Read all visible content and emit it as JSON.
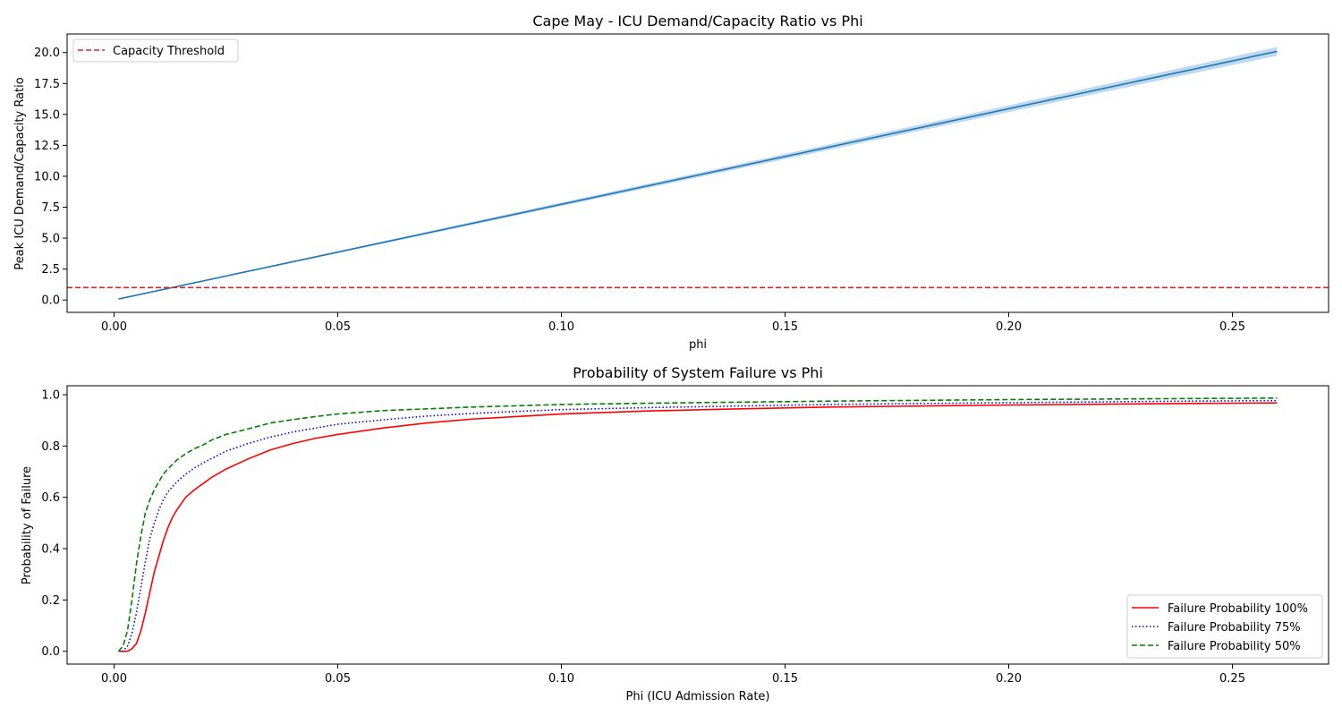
{
  "chart_data": [
    {
      "type": "line",
      "title": "Cape May - ICU Demand/Capacity Ratio vs Phi",
      "xlabel": "phi",
      "ylabel": "Peak ICU Demand/Capacity Ratio",
      "xlim": [
        -0.0105,
        0.2715
      ],
      "ylim": [
        -1.0,
        21.5
      ],
      "xticks": [
        0.0,
        0.05,
        0.1,
        0.15,
        0.2,
        0.25
      ],
      "xtick_labels": [
        "0.00",
        "0.05",
        "0.10",
        "0.15",
        "0.20",
        "0.25"
      ],
      "yticks": [
        0,
        2.5,
        5,
        7.5,
        10,
        12.5,
        15,
        17.5,
        20
      ],
      "ytick_labels": [
        "0.0",
        "2.5",
        "5.0",
        "7.5",
        "10.0",
        "12.5",
        "15.0",
        "17.5",
        "20.0"
      ],
      "legend_position": "upper-left",
      "colors": {
        "ratio": "#1f77b4",
        "band": "#a9cce8",
        "threshold": "#d62728"
      },
      "series": [
        {
          "key": "ratio",
          "x": [
            0.001,
            0.26
          ],
          "y": [
            0.08,
            20.1
          ],
          "band_halfwidth": [
            0.02,
            0.35
          ]
        },
        {
          "key": "threshold",
          "name": "Capacity Threshold",
          "hline": 1.0,
          "style": "dashed"
        }
      ]
    },
    {
      "type": "line",
      "title": "Probability of System Failure vs Phi",
      "xlabel": "Phi (ICU Admission Rate)",
      "ylabel": "Probability of Failure",
      "xlim": [
        -0.0105,
        0.2715
      ],
      "ylim": [
        -0.05,
        1.035
      ],
      "xticks": [
        0.0,
        0.05,
        0.1,
        0.15,
        0.2,
        0.25
      ],
      "xtick_labels": [
        "0.00",
        "0.05",
        "0.10",
        "0.15",
        "0.20",
        "0.25"
      ],
      "yticks": [
        0.0,
        0.2,
        0.4,
        0.6,
        0.8,
        1.0
      ],
      "ytick_labels": [
        "0.0",
        "0.2",
        "0.4",
        "0.6",
        "0.8",
        "1.0"
      ],
      "legend_position": "lower-right",
      "colors": {
        "p100": "#ff0000",
        "p75": "#0000ff",
        "p50": "#008000"
      },
      "series": [
        {
          "key": "p100",
          "name": "Failure Probability 100%",
          "style": "solid",
          "x": [
            0.001,
            0.003,
            0.004,
            0.005,
            0.006,
            0.007,
            0.008,
            0.009,
            0.01,
            0.011,
            0.012,
            0.013,
            0.014,
            0.016,
            0.018,
            0.02,
            0.022,
            0.025,
            0.03,
            0.035,
            0.04,
            0.045,
            0.05,
            0.06,
            0.07,
            0.08,
            0.09,
            0.1,
            0.12,
            0.14,
            0.16,
            0.18,
            0.2,
            0.22,
            0.24,
            0.26
          ],
          "y": [
            0.0,
            0.0,
            0.01,
            0.03,
            0.08,
            0.15,
            0.23,
            0.31,
            0.37,
            0.43,
            0.48,
            0.52,
            0.55,
            0.6,
            0.63,
            0.655,
            0.68,
            0.71,
            0.75,
            0.785,
            0.81,
            0.83,
            0.845,
            0.87,
            0.89,
            0.905,
            0.915,
            0.925,
            0.937,
            0.945,
            0.952,
            0.956,
            0.96,
            0.963,
            0.966,
            0.968
          ]
        },
        {
          "key": "p75",
          "name": "Failure Probability 75%",
          "style": "dotted",
          "x": [
            0.001,
            0.002,
            0.003,
            0.004,
            0.005,
            0.006,
            0.007,
            0.008,
            0.009,
            0.01,
            0.011,
            0.012,
            0.014,
            0.016,
            0.018,
            0.02,
            0.025,
            0.03,
            0.035,
            0.04,
            0.045,
            0.05,
            0.06,
            0.07,
            0.08,
            0.09,
            0.1,
            0.12,
            0.14,
            0.16,
            0.18,
            0.2,
            0.22,
            0.24,
            0.26
          ],
          "y": [
            0.0,
            0.0,
            0.02,
            0.07,
            0.15,
            0.25,
            0.35,
            0.44,
            0.5,
            0.55,
            0.59,
            0.62,
            0.66,
            0.69,
            0.715,
            0.735,
            0.78,
            0.81,
            0.835,
            0.855,
            0.87,
            0.885,
            0.902,
            0.917,
            0.927,
            0.935,
            0.942,
            0.95,
            0.956,
            0.962,
            0.966,
            0.969,
            0.972,
            0.975,
            0.977
          ]
        },
        {
          "key": "p50",
          "name": "Failure Probability 50%",
          "style": "dashed",
          "x": [
            0.001,
            0.002,
            0.003,
            0.004,
            0.005,
            0.006,
            0.007,
            0.008,
            0.009,
            0.01,
            0.011,
            0.012,
            0.014,
            0.016,
            0.018,
            0.02,
            0.022,
            0.025,
            0.03,
            0.035,
            0.04,
            0.045,
            0.05,
            0.06,
            0.07,
            0.08,
            0.09,
            0.1,
            0.12,
            0.14,
            0.16,
            0.18,
            0.2,
            0.22,
            0.24,
            0.26
          ],
          "y": [
            0.0,
            0.02,
            0.08,
            0.2,
            0.34,
            0.45,
            0.54,
            0.59,
            0.63,
            0.66,
            0.69,
            0.71,
            0.745,
            0.77,
            0.79,
            0.805,
            0.825,
            0.845,
            0.867,
            0.89,
            0.903,
            0.915,
            0.925,
            0.938,
            0.945,
            0.952,
            0.957,
            0.962,
            0.967,
            0.971,
            0.975,
            0.978,
            0.981,
            0.983,
            0.985,
            0.987
          ]
        }
      ]
    }
  ]
}
